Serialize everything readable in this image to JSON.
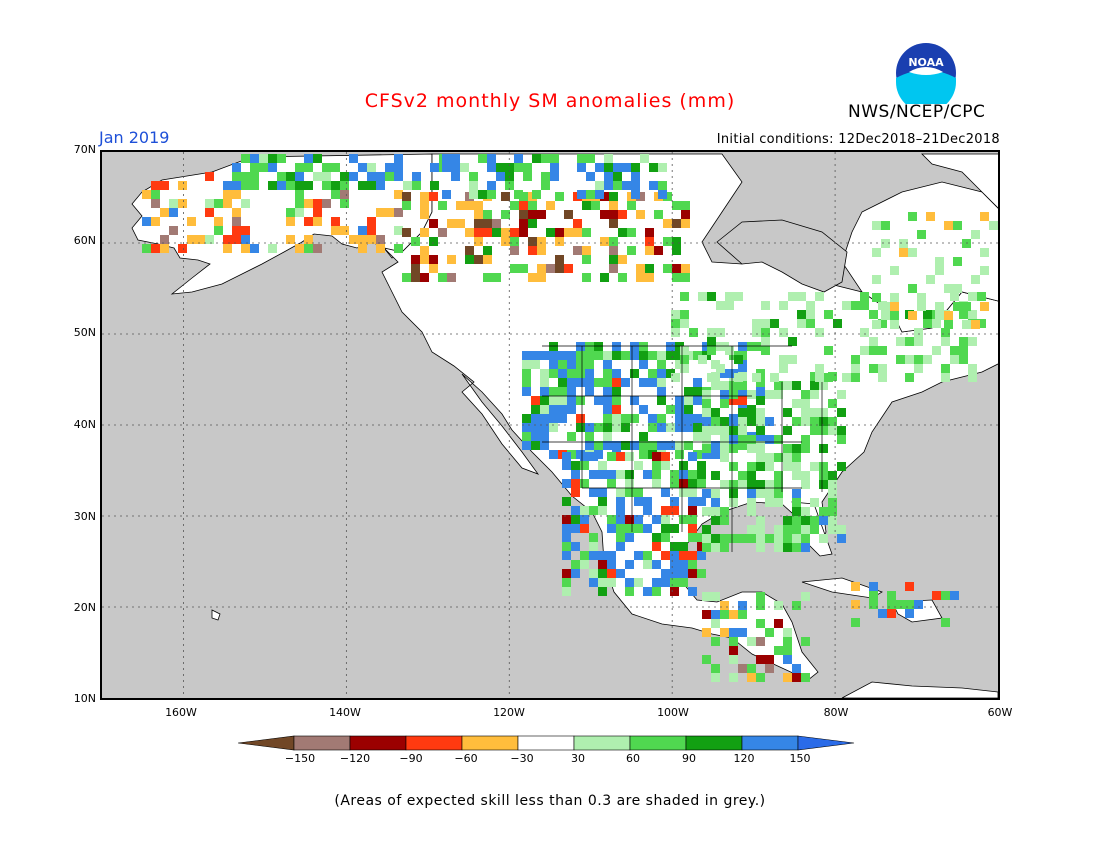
{
  "header": {
    "title": "CFSv2 monthly SM anomalies (mm)",
    "agency": "NWS/NCEP/CPC",
    "logo_text": "NOAA",
    "month": "Jan 2019",
    "initial_conditions": "Initial conditions: 12Dec2018–21Dec2018"
  },
  "colors": {
    "title": "#ff0000",
    "month": "#1e50d8",
    "land_default": "#ffffff",
    "low_skill": "#c8c8c8"
  },
  "map": {
    "lat_labels": [
      "70N",
      "60N",
      "50N",
      "40N",
      "30N",
      "20N",
      "10N"
    ],
    "lon_labels": [
      "160W",
      "140W",
      "120W",
      "100W",
      "80W",
      "60W"
    ],
    "lat_range": [
      10,
      70
    ],
    "lon_range": [
      -170,
      -60
    ],
    "grid": "dotted"
  },
  "legend": {
    "labels": [
      "−150",
      "−120",
      "−90",
      "−60",
      "−30",
      "30",
      "60",
      "90",
      "120",
      "150"
    ],
    "colors": [
      "#714726",
      "#a27a74",
      "#9b0000",
      "#ff3a10",
      "#ffbd3c",
      "#ffffff",
      "#afefaf",
      "#50d850",
      "#12a012",
      "#3586e6",
      "#2a6be8"
    ]
  },
  "footer": {
    "note": "(Areas of expected skill less than 0.3 are shaded in grey.)"
  }
}
